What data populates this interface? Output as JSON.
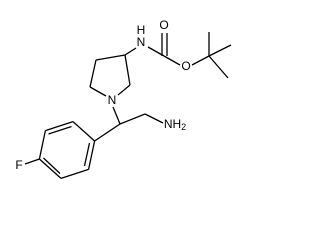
{
  "atoms": {
    "carbamate_h": "H",
    "carbamate_n": "N",
    "carbonyl_o": "O",
    "ester_o": "O",
    "ring_n": "N",
    "amine": {
      "text": "NH",
      "subscript": "2"
    },
    "fluorine": "F"
  }
}
